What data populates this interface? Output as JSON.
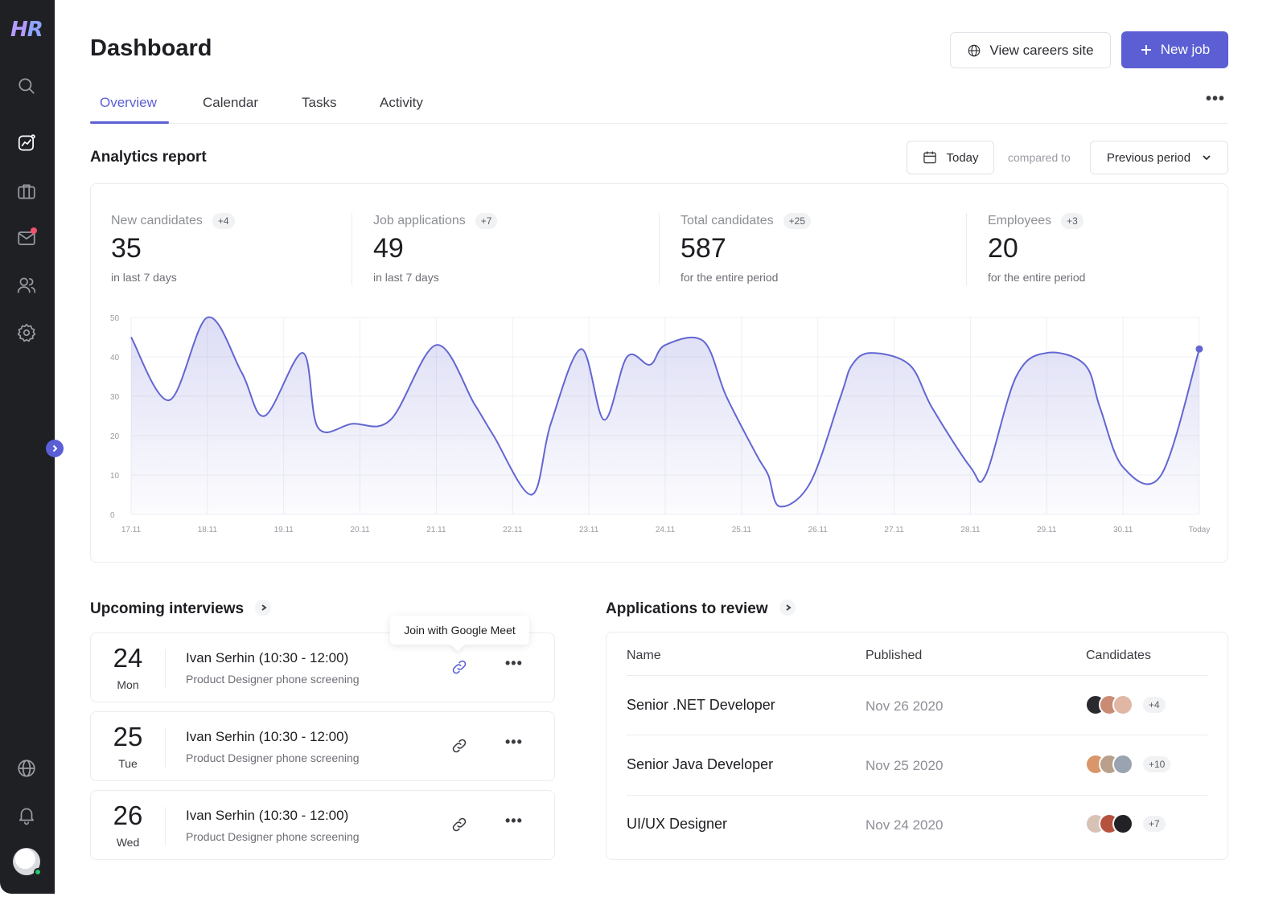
{
  "sidebar": {
    "logo": {
      "h": "H",
      "r": "R"
    },
    "icons": [
      "search-icon",
      "analytics-icon",
      "briefcase-icon",
      "mail-icon",
      "users-icon",
      "settings-icon",
      "globe-icon",
      "bell-icon"
    ],
    "accent": "#5b5fd3"
  },
  "header": {
    "title": "Dashboard",
    "view_careers_label": "View careers site",
    "new_job_label": "New job"
  },
  "tabs": [
    {
      "label": "Overview",
      "active": true
    },
    {
      "label": "Calendar",
      "active": false
    },
    {
      "label": "Tasks",
      "active": false
    },
    {
      "label": "Activity",
      "active": false
    }
  ],
  "analytics": {
    "title": "Analytics report",
    "date_label": "Today",
    "compared_label": "compared to",
    "period_label": "Previous period",
    "stats": [
      {
        "label": "New candidates",
        "badge": "+4",
        "value": "35",
        "sub": "in last 7 days"
      },
      {
        "label": "Job applications",
        "badge": "+7",
        "value": "49",
        "sub": "in last 7 days"
      },
      {
        "label": "Total candidates",
        "badge": "+25",
        "value": "587",
        "sub": "for the entire period"
      },
      {
        "label": "Employees",
        "badge": "+3",
        "value": "20",
        "sub": "for the entire period"
      }
    ]
  },
  "chart_data": {
    "type": "area",
    "x_ticks": [
      "17.11",
      "18.11",
      "19.11",
      "20.11",
      "21.11",
      "22.11",
      "23.11",
      "24.11",
      "25.11",
      "26.11",
      "27.11",
      "28.11",
      "29.11",
      "30.11",
      "Today"
    ],
    "y_ticks": [
      "0",
      "10",
      "20",
      "30",
      "40",
      "50"
    ],
    "ylim": [
      0,
      50
    ],
    "x": [
      0,
      0.5,
      1,
      1.45,
      1.75,
      2.25,
      2.45,
      2.9,
      3.4,
      4,
      4.5,
      4.75,
      5.25,
      5.5,
      5.9,
      6.2,
      6.5,
      6.8,
      7,
      7.5,
      7.8,
      8.2,
      8.35,
      8.5,
      8.9,
      9.3,
      9.45,
      9.7,
      10.2,
      10.5,
      11,
      11.2,
      11.6,
      12,
      12.5,
      12.7,
      13,
      13.5,
      14
    ],
    "y": [
      45,
      29,
      50,
      36,
      25,
      41,
      22,
      23,
      24,
      43,
      28,
      20,
      5,
      23,
      42,
      24,
      40,
      38,
      43,
      44,
      30,
      15,
      10,
      2,
      8,
      30,
      38,
      41,
      38,
      27,
      12,
      10,
      35,
      41,
      38,
      27,
      12,
      10,
      42
    ],
    "series": [
      {
        "name": "",
        "color": "#6366d1"
      }
    ],
    "grid": true,
    "legend": "none"
  },
  "interviews": {
    "title": "Upcoming interviews",
    "tooltip": "Join with Google Meet",
    "items": [
      {
        "day": "24",
        "dow": "Mon",
        "name": "Ivan Serhin (10:30 - 12:00)",
        "desc": "Product Designer phone screening"
      },
      {
        "day": "25",
        "dow": "Tue",
        "name": "Ivan Serhin (10:30 - 12:00)",
        "desc": "Product Designer phone screening"
      },
      {
        "day": "26",
        "dow": "Wed",
        "name": "Ivan Serhin (10:30 - 12:00)",
        "desc": "Product Designer phone screening"
      }
    ]
  },
  "applications": {
    "title": "Applications to review",
    "columns": [
      "Name",
      "Published",
      "Candidates"
    ],
    "rows": [
      {
        "name": "Senior .NET Developer",
        "published": "Nov 26 2020",
        "count": "+4",
        "avatar_colors": [
          "#2a2a2e",
          "#c98b74",
          "#e0b7a4"
        ]
      },
      {
        "name": "Senior Java Developer",
        "published": "Nov 25 2020",
        "count": "+10",
        "avatar_colors": [
          "#d9966b",
          "#b9a08a",
          "#9aa3b0"
        ]
      },
      {
        "name": "UI/UX Designer",
        "published": "Nov 24 2020",
        "count": "+7",
        "avatar_colors": [
          "#d8c2b5",
          "#b5523e",
          "#222226"
        ]
      }
    ]
  }
}
